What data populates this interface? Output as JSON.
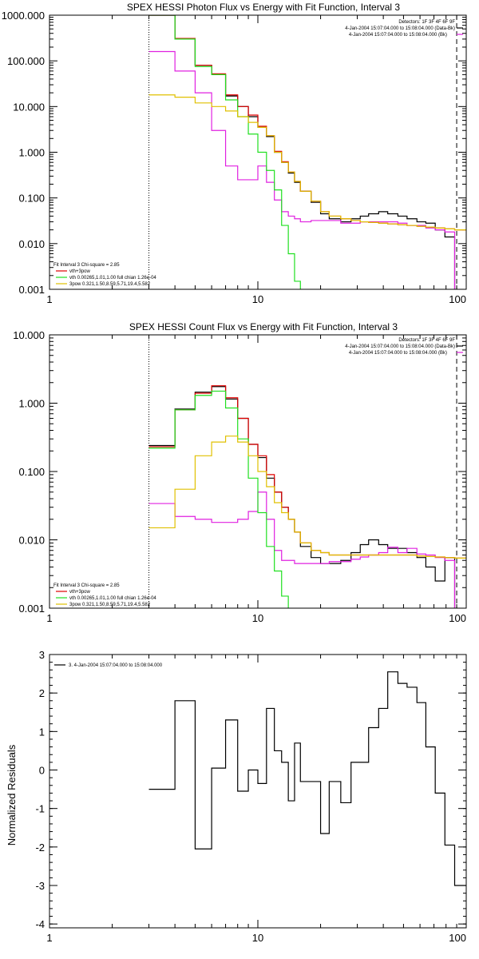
{
  "chart_data": [
    {
      "type": "line",
      "title": "SPEX HESSI Photon Flux vs Energy with Fit Function, Interval 3",
      "xlabel": "",
      "ylabel": "",
      "xscale": "log",
      "yscale": "log",
      "xlim": [
        1,
        100
      ],
      "ylim": [
        0.001,
        1000
      ],
      "x_ticks": [
        1,
        10,
        100
      ],
      "x_tick_labels": [
        "1",
        "10",
        "100"
      ],
      "y_ticks": [
        0.001,
        0.01,
        0.1,
        1,
        10,
        100,
        1000
      ],
      "y_tick_labels": [
        "0.001",
        "0.010",
        "0.100",
        "1.000",
        "10.000",
        "100.000",
        "1000.000"
      ],
      "info_lines": [
        "Detectors: 1F 3F 4F 6F 9F",
        "4-Jan-2004 15:07:04.000 to 15:08:04.000 (Data-Bk)",
        "4-Jan-2004 15:07:04.000 to 15:08:04.000 (Bk)"
      ],
      "info_colors": [
        "#000000",
        "#000000",
        "#e020e0"
      ],
      "fit_label": "Fit Interval 3   Chi-square = 2.85",
      "legend": [
        {
          "label": "vth+3pow",
          "color": "#e00000"
        },
        {
          "label": "vth 0.00265,1.01,1.00   full chian 1.26e-04",
          "color": "#20e020"
        },
        {
          "label": "3pow 0.321,1.50,8.59,5.71,19.4,5.582",
          "color": "#e0c000"
        }
      ],
      "vlines": [
        {
          "x": 3,
          "style": "dotted",
          "color": "#000000"
        },
        {
          "x": 90,
          "style": "dashed",
          "color": "#000000"
        }
      ],
      "edges": [
        3,
        4,
        5,
        6,
        7,
        8,
        9,
        10,
        11,
        12,
        13,
        14,
        15,
        16,
        18,
        20,
        22,
        25,
        28,
        31,
        34,
        38,
        42,
        47,
        52,
        58,
        64,
        71,
        79,
        88,
        100
      ],
      "series": [
        {
          "name": "Data-Bk",
          "color": "#000000",
          "values": [
            1000,
            300,
            80,
            50,
            17,
            10,
            6,
            3.5,
            2.2,
            1.0,
            0.6,
            0.35,
            0.22,
            0.14,
            0.08,
            0.045,
            0.035,
            0.03,
            0.035,
            0.04,
            0.045,
            0.05,
            0.045,
            0.04,
            0.035,
            0.03,
            0.028,
            0.02,
            0.014,
            0.0001
          ]
        },
        {
          "name": "Bk",
          "color": "#e020e0",
          "values": [
            160,
            60,
            20,
            3,
            0.5,
            0.25,
            0.25,
            0.5,
            0.22,
            0.09,
            0.05,
            0.04,
            0.035,
            0.03,
            0.032,
            0.032,
            0.032,
            0.028,
            0.028,
            0.03,
            0.03,
            0.03,
            0.03,
            0.028,
            0.025,
            0.025,
            0.022,
            0.02,
            0.018,
            0.0001
          ]
        },
        {
          "name": "vth+3pow",
          "color": "#e00000",
          "values": [
            1000,
            310,
            80,
            52,
            18,
            10,
            6.5,
            3.7,
            2.3,
            1.05,
            0.62,
            0.37,
            0.23,
            0.14,
            0.085,
            0.05,
            0.04,
            0.035,
            0.032,
            0.03,
            0.029,
            0.028,
            0.027,
            0.026,
            0.025,
            0.024,
            0.023,
            0.022,
            0.021,
            0.02
          ]
        },
        {
          "name": "vth",
          "color": "#20e020",
          "values": [
            1000,
            300,
            75,
            50,
            14,
            6,
            2.5,
            1.0,
            0.4,
            0.15,
            0.025,
            0.006,
            0.0015,
            0.0001
          ]
        },
        {
          "name": "3pow",
          "color": "#e0c000",
          "values": [
            18,
            16,
            12,
            10,
            8,
            6,
            4.5,
            3.5,
            2.3,
            1.0,
            0.6,
            0.37,
            0.23,
            0.14,
            0.085,
            0.05,
            0.04,
            0.035,
            0.032,
            0.03,
            0.029,
            0.028,
            0.027,
            0.026,
            0.025,
            0.024,
            0.023,
            0.022,
            0.021,
            0.02
          ]
        }
      ]
    },
    {
      "type": "line",
      "title": "SPEX HESSI Count Flux vs Energy with Fit Function, Interval 3",
      "xlabel": "",
      "ylabel": "",
      "xscale": "log",
      "yscale": "log",
      "xlim": [
        1,
        100
      ],
      "ylim": [
        0.001,
        10
      ],
      "x_ticks": [
        1,
        10,
        100
      ],
      "x_tick_labels": [
        "1",
        "10",
        "100"
      ],
      "y_ticks": [
        0.001,
        0.01,
        0.1,
        1,
        10
      ],
      "y_tick_labels": [
        "0.001",
        "0.010",
        "0.100",
        "1.000",
        "10.000"
      ],
      "info_lines": [
        "Detectors: 1F 3F 4F 6F 9F",
        "4-Jan-2004 15:07:04.000 to 15:08:04.000 (Data-Bk)",
        "4-Jan-2004 15:07:04.000 to 15:08:04.000 (Bk)"
      ],
      "info_colors": [
        "#000000",
        "#000000",
        "#e020e0"
      ],
      "fit_label": "Fit Interval 3   Chi-square = 2.85",
      "legend": [
        {
          "label": "vth+3pow",
          "color": "#e00000"
        },
        {
          "label": "vth 0.00265,1.01,1.00   full chian 1.26e-04",
          "color": "#20e020"
        },
        {
          "label": "3pow 0.321,1.50,8.59,5.71,19.4,5.582",
          "color": "#e0c000"
        }
      ],
      "vlines": [
        {
          "x": 3,
          "style": "dotted",
          "color": "#000000"
        },
        {
          "x": 90,
          "style": "dashed",
          "color": "#000000"
        }
      ],
      "edges": [
        3,
        4,
        5,
        6,
        7,
        8,
        9,
        10,
        11,
        12,
        13,
        14,
        15,
        16,
        18,
        20,
        22,
        25,
        28,
        31,
        34,
        38,
        42,
        47,
        52,
        58,
        64,
        71,
        79,
        88,
        100
      ],
      "series": [
        {
          "name": "Data-Bk",
          "color": "#000000",
          "values": [
            0.24,
            0.82,
            1.45,
            1.75,
            1.15,
            0.6,
            0.25,
            0.16,
            0.08,
            0.05,
            0.03,
            0.02,
            0.013,
            0.008,
            0.0055,
            0.0045,
            0.0045,
            0.005,
            0.0065,
            0.0085,
            0.01,
            0.0085,
            0.0075,
            0.0075,
            0.0065,
            0.0055,
            0.004,
            0.0025,
            0.0055,
            0.0001
          ]
        },
        {
          "name": "Bk",
          "color": "#e020e0",
          "values": [
            0.034,
            0.022,
            0.02,
            0.018,
            0.018,
            0.02,
            0.026,
            0.05,
            0.02,
            0.007,
            0.005,
            0.005,
            0.0045,
            0.0045,
            0.0045,
            0.0045,
            0.0048,
            0.0048,
            0.0052,
            0.0056,
            0.006,
            0.0065,
            0.0078,
            0.0065,
            0.0075,
            0.0062,
            0.006,
            0.0055,
            0.005,
            0.0001
          ]
        },
        {
          "name": "vth+3pow",
          "color": "#e00000",
          "values": [
            0.23,
            0.8,
            1.4,
            1.8,
            1.2,
            0.6,
            0.25,
            0.17,
            0.09,
            0.05,
            0.03,
            0.02,
            0.013,
            0.009,
            0.007,
            0.0065,
            0.006,
            0.006,
            0.006,
            0.006,
            0.006,
            0.006,
            0.006,
            0.006,
            0.006,
            0.0058,
            0.0057,
            0.0056,
            0.0055,
            0.0054
          ]
        },
        {
          "name": "vth",
          "color": "#20e020",
          "values": [
            0.22,
            0.8,
            1.3,
            1.5,
            0.85,
            0.3,
            0.08,
            0.025,
            0.008,
            0.0035,
            0.0015,
            0.0001
          ]
        },
        {
          "name": "3pow",
          "color": "#e0c000",
          "values": [
            0.015,
            0.055,
            0.17,
            0.27,
            0.33,
            0.27,
            0.17,
            0.1,
            0.06,
            0.035,
            0.025,
            0.02,
            0.013,
            0.009,
            0.007,
            0.0065,
            0.006,
            0.006,
            0.006,
            0.006,
            0.006,
            0.006,
            0.006,
            0.006,
            0.006,
            0.0058,
            0.0057,
            0.0056,
            0.0055,
            0.0054
          ]
        }
      ]
    },
    {
      "type": "line",
      "title": "",
      "xlabel": "",
      "ylabel": "Normalized Residuals",
      "xscale": "log",
      "yscale": "linear",
      "xlim": [
        1,
        100
      ],
      "ylim": [
        -4.1,
        3
      ],
      "x_ticks": [
        1,
        10,
        100
      ],
      "x_tick_labels": [
        "1",
        "10",
        "100"
      ],
      "y_ticks": [
        -4,
        -3,
        -2,
        -1,
        0,
        1,
        2,
        3
      ],
      "y_tick_labels": [
        "-4",
        "-3",
        "-2",
        "-1",
        "0",
        "1",
        "2",
        "3"
      ],
      "legend": [
        {
          "label": "3.  4-Jan-2004 15:07:04.000 to 15:08:04.000",
          "color": "#000000"
        }
      ],
      "edges": [
        3,
        4,
        5,
        6,
        7,
        8,
        9,
        10,
        11,
        12,
        13,
        14,
        15,
        16,
        18,
        20,
        22,
        25,
        28,
        31,
        34,
        38,
        42,
        47,
        52,
        58,
        64,
        71,
        79,
        88,
        100
      ],
      "series": [
        {
          "name": "",
          "color": "#000000",
          "values": [
            -0.5,
            1.8,
            -2.05,
            0.05,
            1.3,
            -0.55,
            0.0,
            -0.35,
            1.6,
            0.5,
            0.2,
            -0.8,
            0.7,
            -0.3,
            -0.3,
            -1.65,
            -0.3,
            -0.85,
            0.2,
            0.2,
            1.1,
            1.6,
            2.55,
            2.25,
            2.15,
            1.75,
            0.6,
            -0.6,
            -1.95,
            -3.0
          ]
        }
      ]
    }
  ]
}
